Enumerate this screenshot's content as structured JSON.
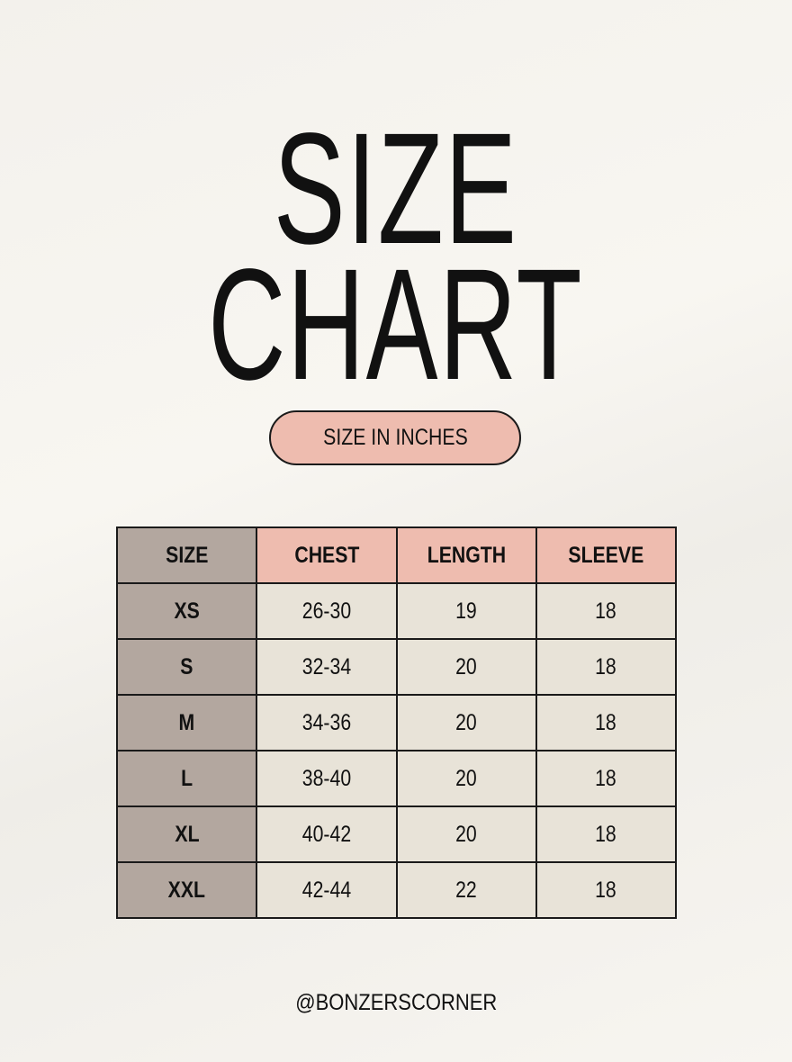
{
  "title": {
    "line1": "SIZE",
    "line2": "CHART"
  },
  "unit_label": "SIZE IN INCHES",
  "table": {
    "headers": [
      "SIZE",
      "CHEST",
      "LENGTH",
      "SLEEVE"
    ],
    "rows": [
      [
        "XS",
        "26-30",
        "19",
        "18"
      ],
      [
        "S",
        "32-34",
        "20",
        "18"
      ],
      [
        "M",
        "34-36",
        "20",
        "18"
      ],
      [
        "L",
        "38-40",
        "20",
        "18"
      ],
      [
        "XL",
        "40-42",
        "20",
        "18"
      ],
      [
        "XXL",
        "42-44",
        "22",
        "18"
      ]
    ]
  },
  "handle": "@BONZERSCORNER",
  "colors": {
    "background": "#f6f4ef",
    "accent_pink": "#eebcaf",
    "size_column": "#b3a79f",
    "cell": "#e8e3d8"
  }
}
